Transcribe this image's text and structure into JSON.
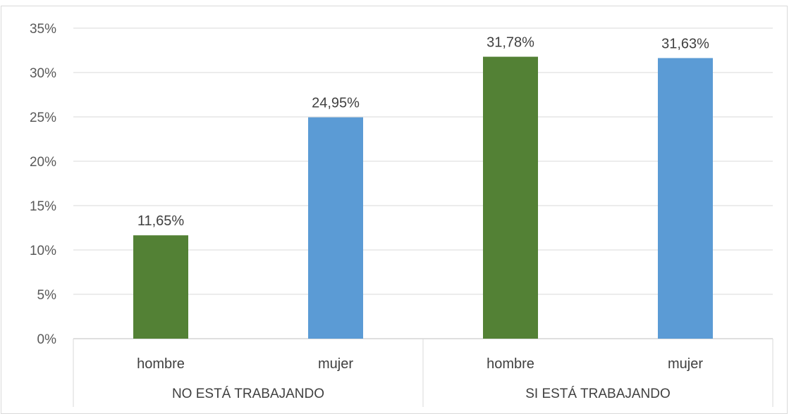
{
  "chart_data": {
    "type": "bar",
    "groups": [
      "NO ESTÁ TRABAJANDO",
      "SI ESTÁ TRABAJANDO"
    ],
    "categories": [
      "hombre",
      "mujer",
      "hombre",
      "mujer"
    ],
    "values": [
      11.65,
      24.95,
      31.78,
      31.63
    ],
    "data_labels": [
      "11,65%",
      "24,95%",
      "31,78%",
      "31,63%"
    ],
    "bar_colors": [
      "#538135",
      "#5b9bd5",
      "#538135",
      "#5b9bd5"
    ],
    "y_ticks": [
      "0%",
      "5%",
      "10%",
      "15%",
      "20%",
      "25%",
      "30%",
      "35%"
    ],
    "ylim": [
      0,
      35
    ],
    "grid": true,
    "title": "",
    "xlabel": "",
    "ylabel": ""
  }
}
